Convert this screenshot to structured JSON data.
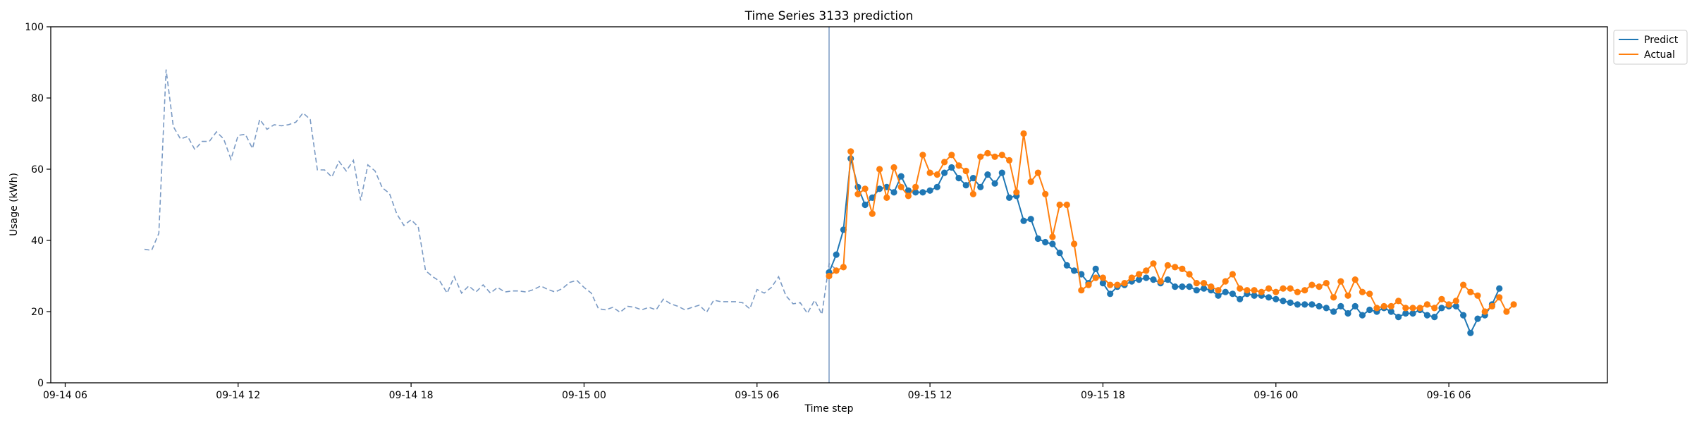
{
  "chart_data": {
    "type": "line",
    "title": "Time Series 3133 prediction",
    "xlabel": "Time step",
    "ylabel": "Usage (kWh)",
    "ylim": [
      0,
      100
    ],
    "yticks": [
      0,
      20,
      40,
      60,
      80,
      100
    ],
    "xlim": [
      "2024-09-14 05:30",
      "2024-09-16 11:30"
    ],
    "xticks": [
      {
        "t": "2024-09-14 06:00",
        "label": "09-14 06"
      },
      {
        "t": "2024-09-14 12:00",
        "label": "09-14 12"
      },
      {
        "t": "2024-09-14 18:00",
        "label": "09-14 18"
      },
      {
        "t": "2024-09-15 00:00",
        "label": "09-15 00"
      },
      {
        "t": "2024-09-15 06:00",
        "label": "09-15 06"
      },
      {
        "t": "2024-09-15 12:00",
        "label": "09-15 12"
      },
      {
        "t": "2024-09-15 18:00",
        "label": "09-15 18"
      },
      {
        "t": "2024-09-16 00:00",
        "label": "09-16 00"
      },
      {
        "t": "2024-09-16 06:00",
        "label": "09-16 06"
      }
    ],
    "legend_position": "outside-top-right",
    "grid": false,
    "history_start": "2024-09-14 08:45",
    "forecast_start": "2024-09-15 08:30",
    "interval_minutes": 15,
    "series": [
      {
        "name": "",
        "style": "dashed",
        "color": "#7a9ac4",
        "start": "2024-09-14 08:45",
        "values": [
          37.5,
          37.2,
          42,
          88,
          72,
          68.5,
          69.2,
          65.5,
          67.8,
          67.8,
          70.5,
          68.5,
          62.8,
          69.5,
          69.8,
          65.8,
          74,
          71.2,
          72.5,
          72.2,
          72.5,
          73.2,
          75.8,
          74,
          59.8,
          59.8,
          57.8,
          62.2,
          59.5,
          62.5,
          51.2,
          61.2,
          59.5,
          54.8,
          53.2,
          47.5,
          44.2,
          45.8,
          43.8,
          31.5,
          29.8,
          28.5,
          25.2,
          29.8,
          25.2,
          27.2,
          25.5,
          27.5,
          25.2,
          26.8,
          25.5,
          25.8,
          25.8,
          25.5,
          26.2,
          27.2,
          26.2,
          25.5,
          26.5,
          28.2,
          28.8,
          26.8,
          25.2,
          20.8,
          20.5,
          21.2,
          19.8,
          21.5,
          21.2,
          20.5,
          21.2,
          20.5,
          23.5,
          22.2,
          21.5,
          20.5,
          21.2,
          21.8,
          19.8,
          23.2,
          22.8,
          22.8,
          22.8,
          22.5,
          20.8,
          26.2,
          25.2,
          26.8,
          29.8,
          24.5,
          22.2,
          22.5,
          19.5,
          23.2,
          19.2,
          33.5,
          31.8
        ]
      },
      {
        "name": "Predict",
        "style": "solid-markers",
        "color": "#1f77b4",
        "start": "2024-09-15 08:30",
        "values": [
          31,
          36,
          43,
          63,
          55,
          50,
          52,
          54.5,
          55,
          53.5,
          58,
          54,
          53.5,
          53.5,
          54,
          55,
          59,
          60.5,
          57.5,
          55.5,
          57.5,
          55,
          58.5,
          56,
          59,
          52,
          52.5,
          45.5,
          46,
          40.5,
          39.5,
          39,
          36.5,
          33,
          31.5,
          30.5,
          28,
          32,
          28,
          25,
          27,
          27.5,
          28.5,
          29,
          29.5,
          29,
          28,
          29,
          27,
          27,
          27,
          26,
          26.5,
          26,
          24.5,
          25.5,
          25,
          23.5,
          25,
          24.5,
          24.5,
          24,
          23.5,
          23,
          22.5,
          22,
          22,
          22,
          21.5,
          21,
          20,
          21.5,
          19.5,
          21.5,
          19,
          20.5,
          20,
          21,
          20,
          18.5,
          19.5,
          19.5,
          20.5,
          19,
          18.5,
          21,
          21.5,
          21.5,
          19,
          14,
          18,
          19,
          22,
          26.5
        ]
      },
      {
        "name": "Actual",
        "style": "solid-markers",
        "color": "#ff7f0e",
        "start": "2024-09-15 08:30",
        "values": [
          30,
          31.5,
          32.5,
          65,
          53,
          54.5,
          47.5,
          60,
          52,
          60.5,
          55,
          52.5,
          55,
          64,
          59,
          58.5,
          62,
          64,
          61,
          59.5,
          53,
          63.5,
          64.5,
          63.5,
          64,
          62.5,
          53.5,
          70,
          56.5,
          59,
          53,
          41,
          50,
          50,
          39,
          26,
          27.5,
          29.5,
          29.5,
          27.5,
          27.5,
          28,
          29.5,
          30.5,
          31.5,
          33.5,
          28.5,
          33,
          32.5,
          32,
          30.5,
          28,
          28,
          27,
          26,
          28.5,
          30.5,
          26.5,
          26,
          26,
          25.5,
          26.5,
          25.5,
          26.5,
          26.5,
          25.5,
          26,
          27.5,
          27,
          28,
          24,
          28.5,
          24.5,
          29,
          25.5,
          25,
          21,
          21.5,
          21.5,
          23,
          21,
          21,
          21,
          22,
          21,
          23.5,
          22,
          23,
          27.5,
          25.5,
          24.5,
          20,
          21.5,
          24,
          20,
          22
        ]
      }
    ]
  }
}
